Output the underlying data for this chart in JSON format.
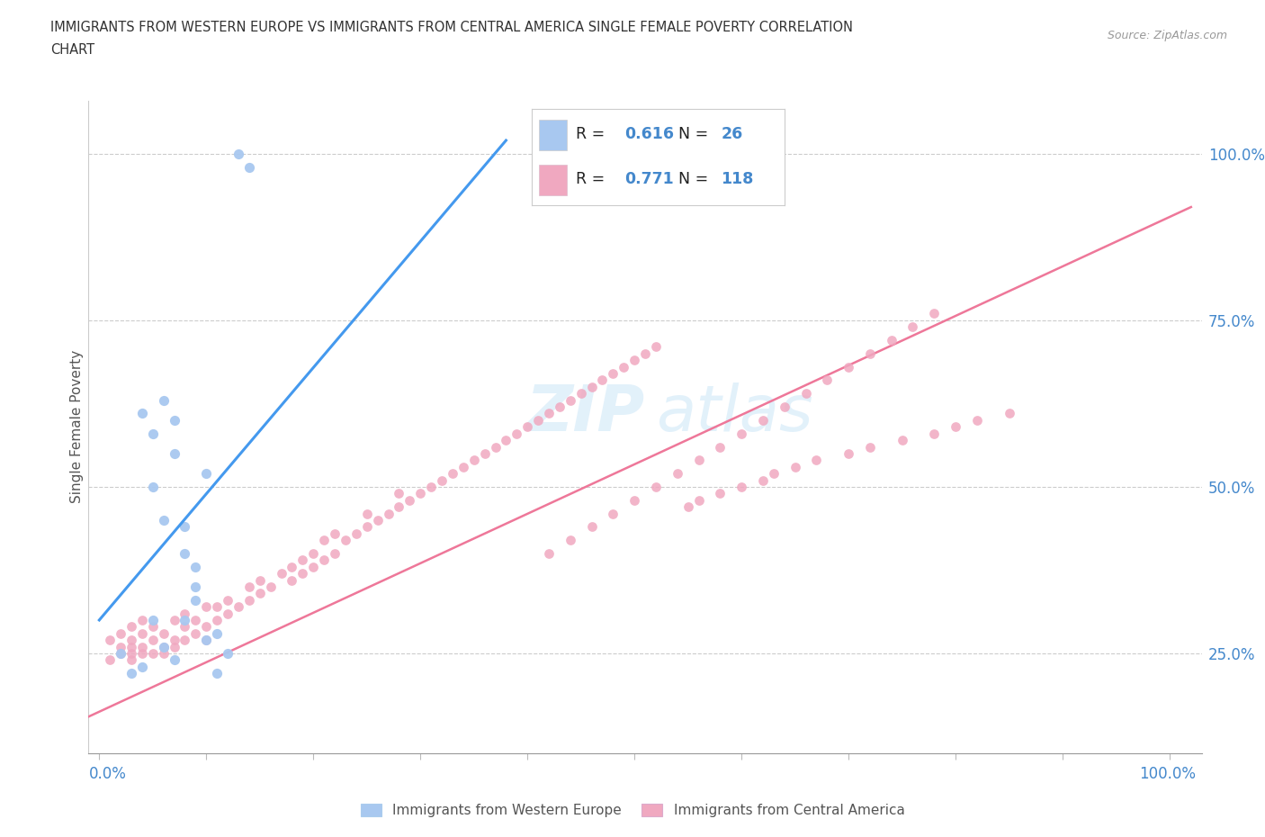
{
  "title_line1": "IMMIGRANTS FROM WESTERN EUROPE VS IMMIGRANTS FROM CENTRAL AMERICA SINGLE FEMALE POVERTY CORRELATION",
  "title_line2": "CHART",
  "source_text": "Source: ZipAtlas.com",
  "ylabel": "Single Female Poverty",
  "legend_label1": "Immigrants from Western Europe",
  "legend_label2": "Immigrants from Central America",
  "R1": "0.616",
  "N1": "26",
  "R2": "0.771",
  "N2": "118",
  "color_blue": "#a8c8f0",
  "color_pink": "#f0a8c0",
  "color_blue_text": "#4488cc",
  "line_blue": "#4499ee",
  "line_pink": "#ee7799",
  "blue_x": [
    0.02,
    0.03,
    0.04,
    0.04,
    0.05,
    0.05,
    0.05,
    0.06,
    0.06,
    0.07,
    0.07,
    0.08,
    0.08,
    0.09,
    0.09,
    0.1,
    0.11,
    0.06,
    0.07,
    0.08,
    0.09,
    0.1,
    0.11,
    0.12,
    0.13,
    0.14
  ],
  "blue_y": [
    0.25,
    0.22,
    0.23,
    0.61,
    0.58,
    0.3,
    0.5,
    0.63,
    0.45,
    0.55,
    0.6,
    0.44,
    0.4,
    0.35,
    0.33,
    0.52,
    0.28,
    0.26,
    0.24,
    0.3,
    0.38,
    0.27,
    0.22,
    0.25,
    1.0,
    0.98
  ],
  "pink_x": [
    0.01,
    0.01,
    0.02,
    0.02,
    0.02,
    0.03,
    0.03,
    0.03,
    0.03,
    0.03,
    0.04,
    0.04,
    0.04,
    0.04,
    0.05,
    0.05,
    0.05,
    0.06,
    0.06,
    0.06,
    0.07,
    0.07,
    0.07,
    0.08,
    0.08,
    0.08,
    0.09,
    0.09,
    0.1,
    0.1,
    0.1,
    0.11,
    0.11,
    0.12,
    0.12,
    0.13,
    0.14,
    0.14,
    0.15,
    0.15,
    0.16,
    0.17,
    0.18,
    0.18,
    0.19,
    0.19,
    0.2,
    0.2,
    0.21,
    0.21,
    0.22,
    0.22,
    0.23,
    0.24,
    0.25,
    0.25,
    0.26,
    0.27,
    0.28,
    0.28,
    0.29,
    0.3,
    0.31,
    0.32,
    0.33,
    0.34,
    0.35,
    0.36,
    0.37,
    0.38,
    0.39,
    0.4,
    0.41,
    0.42,
    0.43,
    0.44,
    0.45,
    0.46,
    0.47,
    0.48,
    0.49,
    0.5,
    0.51,
    0.52,
    0.55,
    0.56,
    0.58,
    0.6,
    0.62,
    0.63,
    0.65,
    0.67,
    0.7,
    0.72,
    0.75,
    0.78,
    0.8,
    0.82,
    0.85,
    0.42,
    0.44,
    0.46,
    0.48,
    0.5,
    0.52,
    0.54,
    0.56,
    0.58,
    0.6,
    0.62,
    0.64,
    0.66,
    0.68,
    0.7,
    0.72,
    0.74,
    0.76,
    0.78
  ],
  "pink_y": [
    0.24,
    0.27,
    0.25,
    0.26,
    0.28,
    0.24,
    0.25,
    0.26,
    0.27,
    0.29,
    0.25,
    0.26,
    0.28,
    0.3,
    0.25,
    0.27,
    0.29,
    0.25,
    0.26,
    0.28,
    0.26,
    0.27,
    0.3,
    0.27,
    0.29,
    0.31,
    0.28,
    0.3,
    0.27,
    0.29,
    0.32,
    0.3,
    0.32,
    0.31,
    0.33,
    0.32,
    0.33,
    0.35,
    0.34,
    0.36,
    0.35,
    0.37,
    0.36,
    0.38,
    0.37,
    0.39,
    0.38,
    0.4,
    0.39,
    0.42,
    0.4,
    0.43,
    0.42,
    0.43,
    0.44,
    0.46,
    0.45,
    0.46,
    0.47,
    0.49,
    0.48,
    0.49,
    0.5,
    0.51,
    0.52,
    0.53,
    0.54,
    0.55,
    0.56,
    0.57,
    0.58,
    0.59,
    0.6,
    0.61,
    0.62,
    0.63,
    0.64,
    0.65,
    0.66,
    0.67,
    0.68,
    0.69,
    0.7,
    0.71,
    0.47,
    0.48,
    0.49,
    0.5,
    0.51,
    0.52,
    0.53,
    0.54,
    0.55,
    0.56,
    0.57,
    0.58,
    0.59,
    0.6,
    0.61,
    0.4,
    0.42,
    0.44,
    0.46,
    0.48,
    0.5,
    0.52,
    0.54,
    0.56,
    0.58,
    0.6,
    0.62,
    0.64,
    0.66,
    0.68,
    0.7,
    0.72,
    0.74,
    0.76
  ],
  "blue_line_x0": 0.0,
  "blue_line_x1": 0.38,
  "blue_line_y0": 0.3,
  "blue_line_y1": 1.02,
  "pink_line_x0": -0.01,
  "pink_line_x1": 1.02,
  "pink_line_y0": 0.155,
  "pink_line_y1": 0.92,
  "xlim_min": -0.01,
  "xlim_max": 1.03,
  "ylim_min": 0.1,
  "ylim_max": 1.08
}
